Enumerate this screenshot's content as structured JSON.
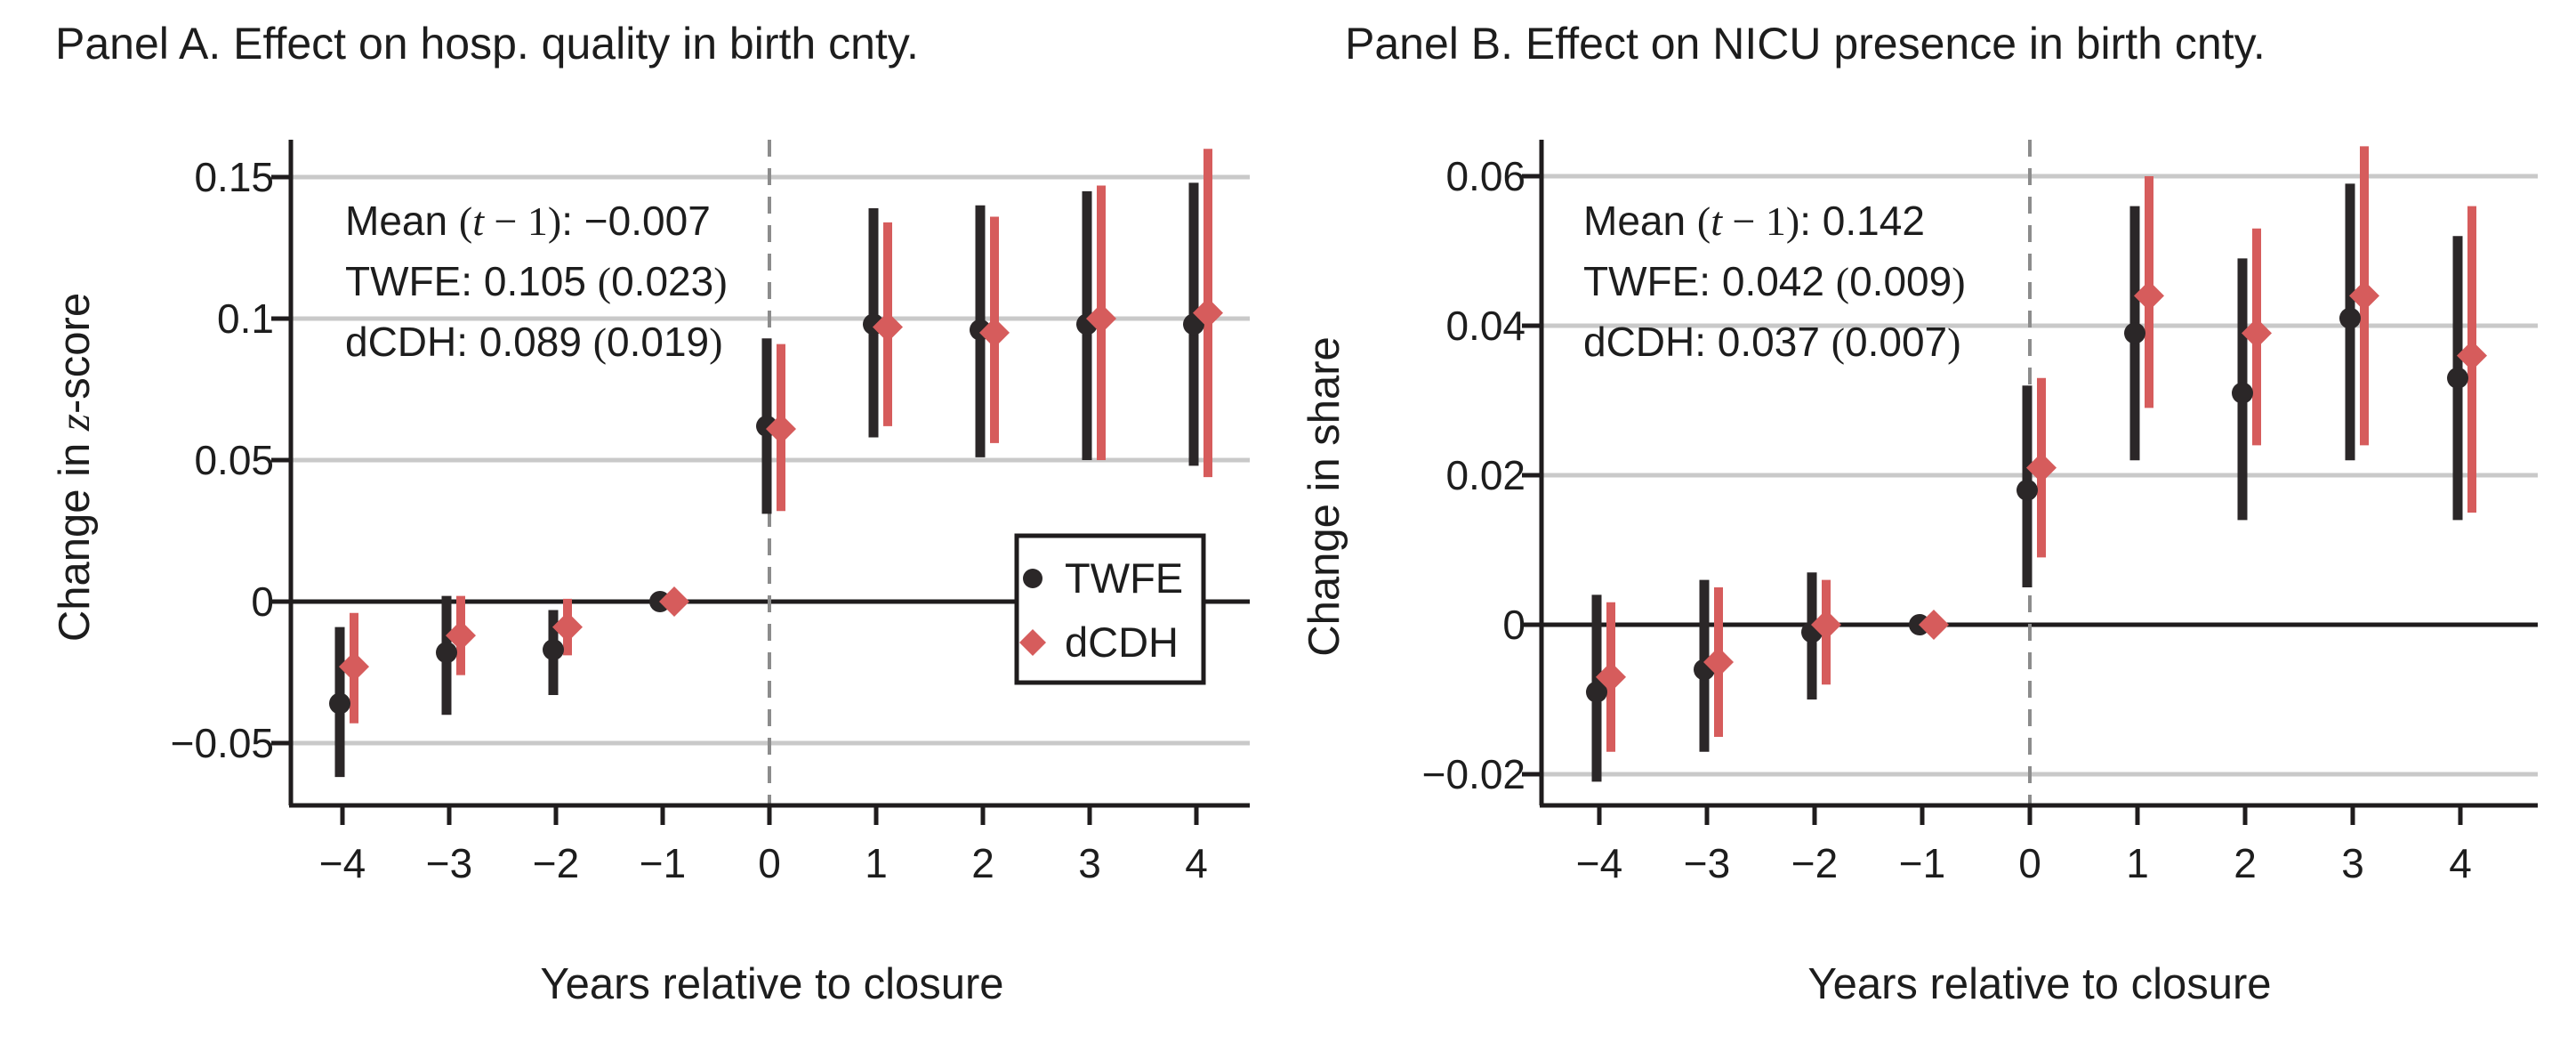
{
  "figure": {
    "background": "#ffffff",
    "text_color": "#1d1d1d",
    "grid_color": "#c9c9c9",
    "axis_color": "#1f1c1d",
    "zero_line_color": "#1f1c1d",
    "event_line_color": "#8c8c8c",
    "twfe_color": "#2b2728",
    "dcdh_color": "#d65c5c"
  },
  "chart_data": [
    {
      "type": "scatter-errorbar",
      "title": "Panel A. Effect on hosp. quality in birth cnty.",
      "xlabel": "Years relative to closure",
      "ylabel_segments": [
        [
          "Change in ",
          "sans"
        ],
        [
          "z",
          "italic"
        ],
        [
          "-score",
          "sans"
        ]
      ],
      "x": [
        -4,
        -3,
        -2,
        -1,
        0,
        1,
        2,
        3,
        4
      ],
      "xtick_labels": [
        "−4",
        "−3",
        "−2",
        "−1",
        "0",
        "1",
        "2",
        "3",
        "4"
      ],
      "yticks": [
        0.15,
        0.1,
        0.05,
        0,
        -0.05
      ],
      "ytick_labels": [
        "0.15",
        "0.1",
        "0.05",
        "0",
        "−0.05"
      ],
      "ylim": [
        -0.072,
        0.163
      ],
      "grid": true,
      "zero_line": true,
      "event_line_x": 0,
      "legend_position": "inside-right",
      "stats": {
        "mean_t_minus_1": -0.007,
        "twfe": {
          "estimate": 0.105,
          "se": 0.023
        },
        "dcdh": {
          "estimate": 0.089,
          "se": 0.019
        }
      },
      "annotation_lines": [
        [
          [
            "Mean ",
            "sans"
          ],
          [
            "(",
            "seg-serif"
          ],
          [
            "t",
            "seg-italic"
          ],
          [
            " − 1",
            "seg-serif"
          ],
          [
            ")",
            "seg-serif"
          ],
          [
            ": −0.007",
            "sans"
          ]
        ],
        [
          [
            "TWFE: 0.105 ",
            "sans"
          ],
          [
            "(",
            "seg-serif"
          ],
          [
            "0.023",
            "sans"
          ],
          [
            ")",
            "seg-serif"
          ]
        ],
        [
          [
            "dCDH: 0.089 ",
            "sans"
          ],
          [
            "(",
            "seg-serif"
          ],
          [
            "0.019",
            "sans"
          ],
          [
            ")",
            "seg-serif"
          ]
        ]
      ],
      "series": [
        {
          "name": "TWFE",
          "marker": "circle",
          "color": "#2b2728",
          "estimates": [
            -0.036,
            -0.018,
            -0.017,
            0,
            0.062,
            0.098,
            0.096,
            0.098,
            0.098
          ],
          "ci_low": [
            -0.062,
            -0.04,
            -0.033,
            0,
            0.031,
            0.058,
            0.051,
            0.05,
            0.048
          ],
          "ci_high": [
            -0.009,
            0.002,
            -0.003,
            0,
            0.093,
            0.139,
            0.14,
            0.145,
            0.148
          ]
        },
        {
          "name": "dCDH",
          "marker": "diamond",
          "color": "#d65c5c",
          "estimates": [
            -0.023,
            -0.012,
            -0.009,
            0,
            0.061,
            0.097,
            0.095,
            0.1,
            0.102
          ],
          "ci_low": [
            -0.043,
            -0.026,
            -0.019,
            0,
            0.032,
            0.062,
            0.056,
            0.05,
            0.044
          ],
          "ci_high": [
            -0.004,
            0.002,
            0.001,
            0,
            0.091,
            0.134,
            0.136,
            0.147,
            0.16
          ]
        }
      ],
      "legend": {
        "items": [
          {
            "label": "TWFE",
            "marker": "circle",
            "color": "#2b2728"
          },
          {
            "label": "dCDH",
            "marker": "diamond",
            "color": "#d65c5c"
          }
        ]
      }
    },
    {
      "type": "scatter-errorbar",
      "title": "Panel B. Effect on NICU presence in birth cnty.",
      "xlabel": "Years relative to closure",
      "ylabel_segments": [
        [
          "Change in share",
          "sans"
        ]
      ],
      "x": [
        -4,
        -3,
        -2,
        -1,
        0,
        1,
        2,
        3,
        4
      ],
      "xtick_labels": [
        "−4",
        "−3",
        "−2",
        "−1",
        "0",
        "1",
        "2",
        "3",
        "4"
      ],
      "yticks": [
        0.06,
        0.04,
        0.02,
        0,
        -0.02
      ],
      "ytick_labels": [
        "0.06",
        "0.04",
        "0.02",
        "0",
        "−0.02"
      ],
      "ylim": [
        -0.0242,
        0.0649
      ],
      "grid": true,
      "zero_line": true,
      "event_line_x": 0,
      "stats": {
        "mean_t_minus_1": 0.142,
        "twfe": {
          "estimate": 0.042,
          "se": 0.009
        },
        "dcdh": {
          "estimate": 0.037,
          "se": 0.007
        }
      },
      "annotation_lines": [
        [
          [
            "Mean ",
            "sans"
          ],
          [
            "(",
            "seg-serif"
          ],
          [
            "t",
            "seg-italic"
          ],
          [
            " − 1",
            "seg-serif"
          ],
          [
            ")",
            "seg-serif"
          ],
          [
            ": 0.142",
            "sans"
          ]
        ],
        [
          [
            "TWFE: 0.042 ",
            "sans"
          ],
          [
            "(",
            "seg-serif"
          ],
          [
            "0.009",
            "sans"
          ],
          [
            ")",
            "seg-serif"
          ]
        ],
        [
          [
            "dCDH: 0.037 ",
            "sans"
          ],
          [
            "(",
            "seg-serif"
          ],
          [
            "0.007",
            "sans"
          ],
          [
            ")",
            "seg-serif"
          ]
        ]
      ],
      "series": [
        {
          "name": "TWFE",
          "marker": "circle",
          "color": "#2b2728",
          "estimates": [
            -0.009,
            -0.006,
            -0.001,
            0,
            0.018,
            0.039,
            0.031,
            0.041,
            0.033
          ],
          "ci_low": [
            -0.021,
            -0.017,
            -0.01,
            0,
            0.005,
            0.022,
            0.014,
            0.022,
            0.014
          ],
          "ci_high": [
            0.004,
            0.006,
            0.007,
            0,
            0.032,
            0.056,
            0.049,
            0.059,
            0.052
          ]
        },
        {
          "name": "dCDH",
          "marker": "diamond",
          "color": "#d65c5c",
          "estimates": [
            -0.007,
            -0.005,
            0.0,
            0,
            0.021,
            0.044,
            0.039,
            0.044,
            0.036
          ],
          "ci_low": [
            -0.017,
            -0.015,
            -0.008,
            0,
            0.009,
            0.029,
            0.024,
            0.024,
            0.015
          ],
          "ci_high": [
            0.003,
            0.005,
            0.006,
            0,
            0.033,
            0.06,
            0.053,
            0.064,
            0.056
          ]
        }
      ]
    }
  ]
}
